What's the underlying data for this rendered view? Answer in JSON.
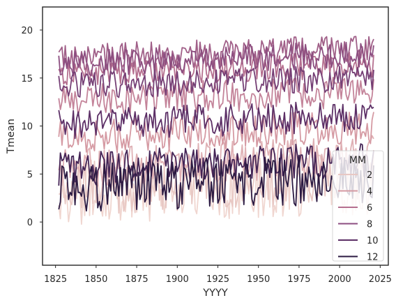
{
  "chart_data": {
    "type": "line",
    "xlabel": "YYYY",
    "ylabel": "Tmean",
    "xlim": [
      1817,
      2030
    ],
    "ylim": [
      -4.5,
      22.4
    ],
    "x_ticks": [
      1825,
      1850,
      1875,
      1900,
      1925,
      1950,
      1975,
      2000,
      2025
    ],
    "y_ticks": [
      0,
      5,
      10,
      15,
      20
    ],
    "x_tick_labels": [
      "1825",
      "1850",
      "1875",
      "1900",
      "1925",
      "1950",
      "1975",
      "2000",
      "2025"
    ],
    "y_tick_labels": [
      "0",
      "5",
      "10",
      "15",
      "20"
    ],
    "grid": false,
    "legend": {
      "title": "MM",
      "placement": "lower-right",
      "entries": [
        {
          "label": "2",
          "color": "#e8c8c4"
        },
        {
          "label": "4",
          "color": "#d59aa3"
        },
        {
          "label": "6",
          "color": "#b56f8f"
        },
        {
          "label": "8",
          "color": "#8c4e80"
        },
        {
          "label": "10",
          "color": "#5c2f66"
        },
        {
          "label": "12",
          "color": "#2b1a42"
        }
      ]
    },
    "x_range": [
      1827,
      2021
    ],
    "series": [
      {
        "month": 1,
        "color": "#f0d6d0",
        "mean": 3.0,
        "amp": 2.4,
        "trend": 1.2,
        "low": -2.5,
        "high": 6.8
      },
      {
        "month": 2,
        "color": "#e8c8c4",
        "mean": 3.6,
        "amp": 2.1,
        "trend": 1.3,
        "low": -3.0,
        "high": 7.5
      },
      {
        "month": 3,
        "color": "#dfb0b4",
        "mean": 5.6,
        "amp": 1.5,
        "trend": 1.3,
        "low": 1.5,
        "high": 9.2
      },
      {
        "month": 4,
        "color": "#d59aa3",
        "mean": 8.8,
        "amp": 1.3,
        "trend": 1.2,
        "low": 5.8,
        "high": 12.6
      },
      {
        "month": 5,
        "color": "#c4849a",
        "mean": 12.6,
        "amp": 1.2,
        "trend": 1.0,
        "low": 9.8,
        "high": 15.6
      },
      {
        "month": 6,
        "color": "#b56f8f",
        "mean": 15.5,
        "amp": 1.0,
        "trend": 0.9,
        "low": 13.0,
        "high": 18.7
      },
      {
        "month": 7,
        "color": "#a05f88",
        "mean": 17.0,
        "amp": 1.1,
        "trend": 1.0,
        "low": 14.5,
        "high": 21.1
      },
      {
        "month": 8,
        "color": "#8c4e80",
        "mean": 16.5,
        "amp": 1.0,
        "trend": 1.0,
        "low": 14.0,
        "high": 20.3
      },
      {
        "month": 9,
        "color": "#753f75",
        "mean": 14.2,
        "amp": 1.0,
        "trend": 0.8,
        "low": 11.7,
        "high": 17.2
      },
      {
        "month": 10,
        "color": "#5c2f66",
        "mean": 10.2,
        "amp": 1.2,
        "trend": 0.8,
        "low": 7.2,
        "high": 13.4
      },
      {
        "month": 11,
        "color": "#442456",
        "mean": 5.6,
        "amp": 1.3,
        "trend": 0.9,
        "low": 2.2,
        "high": 9.0
      },
      {
        "month": 12,
        "color": "#2b1a42",
        "mean": 3.6,
        "amp": 1.9,
        "trend": 1.0,
        "low": -1.9,
        "high": 8.0
      }
    ]
  }
}
